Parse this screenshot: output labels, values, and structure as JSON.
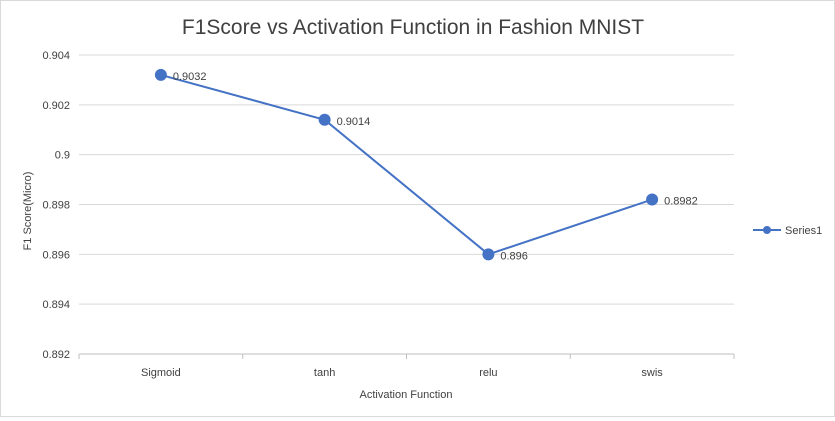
{
  "chart_data": {
    "type": "line",
    "title": "F1Score vs Activation Function in Fashion MNIST",
    "xlabel": "Activation Function",
    "ylabel": "F1 Score(Micro)",
    "categories": [
      "Sigmoid",
      "tanh",
      "relu",
      "swis"
    ],
    "series": [
      {
        "name": "Series1",
        "values": [
          0.9032,
          0.9014,
          0.896,
          0.8982
        ],
        "data_labels": [
          "0.9032",
          "0.9014",
          "0.896",
          "0.8982"
        ],
        "color": "#4472c4"
      }
    ],
    "ylim": [
      0.892,
      0.904
    ],
    "yticks": [
      0.892,
      0.894,
      0.896,
      0.898,
      0.9,
      0.902,
      0.904
    ],
    "ytick_labels": [
      "0.892",
      "0.894",
      "0.896",
      "0.898",
      "0.9",
      "0.902",
      "0.904"
    ],
    "grid": true,
    "legend_position": "right"
  }
}
